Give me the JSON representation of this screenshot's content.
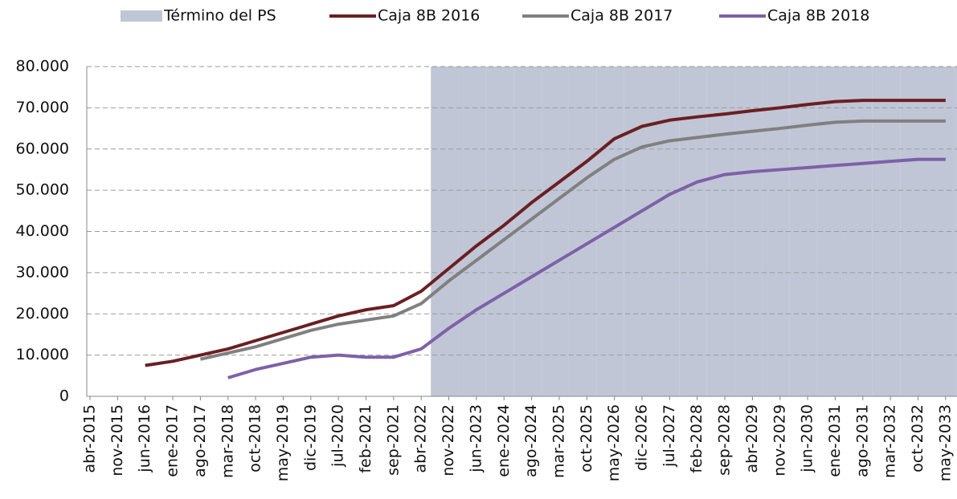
{
  "chart_data": {
    "type": "line",
    "categories": [
      "abr-2015",
      "nov-2015",
      "jun-2016",
      "ene-2017",
      "ago-2017",
      "mar-2018",
      "oct-2018",
      "may-2019",
      "dic-2019",
      "jul-2020",
      "feb-2021",
      "sep-2021",
      "abr-2022",
      "nov-2022",
      "jun-2023",
      "ene-2024",
      "ago-2024",
      "mar-2025",
      "oct-2025",
      "may-2026",
      "dic-2026",
      "jul-2027",
      "feb-2028",
      "sep-2028",
      "abr-2029",
      "nov-2029",
      "jun-2030",
      "ene-2031",
      "ago-2031",
      "mar-2032",
      "oct-2032",
      "may-2033"
    ],
    "shade": {
      "name": "Término del PS",
      "color": "#c0c6d6",
      "values": [
        null,
        null,
        null,
        null,
        null,
        null,
        null,
        null,
        null,
        null,
        null,
        null,
        80000,
        80000,
        80000,
        80000,
        80000,
        80000,
        80000,
        80000,
        80000,
        80000,
        80000,
        80000,
        80000,
        80000,
        80000,
        80000,
        80000,
        80000,
        80000,
        80000
      ]
    },
    "series": [
      {
        "name": "Caja 8B 2016",
        "color": "#6b1f22",
        "values": [
          null,
          null,
          7500,
          8500,
          10000,
          11500,
          13500,
          15500,
          17500,
          19500,
          21000,
          22000,
          25500,
          31000,
          36500,
          41500,
          47000,
          52000,
          57000,
          62500,
          65500,
          67000,
          67800,
          68500,
          69300,
          70000,
          70800,
          71500,
          71800,
          71800,
          71800,
          71800
        ]
      },
      {
        "name": "Caja 8B 2017",
        "color": "#808080",
        "values": [
          null,
          null,
          null,
          null,
          9000,
          10500,
          12000,
          14000,
          16000,
          17500,
          18500,
          19500,
          22500,
          28000,
          33000,
          38000,
          43000,
          48000,
          53000,
          57500,
          60500,
          62000,
          62800,
          63600,
          64300,
          65000,
          65800,
          66500,
          66800,
          66800,
          66800,
          66800
        ]
      },
      {
        "name": "Caja 8B 2018",
        "color": "#7e60a8",
        "values": [
          null,
          null,
          null,
          null,
          null,
          4500,
          6500,
          8000,
          9500,
          10000,
          9500,
          9500,
          11500,
          16500,
          21000,
          25000,
          29000,
          33000,
          37000,
          41000,
          45000,
          49000,
          52000,
          53800,
          54500,
          55000,
          55500,
          56000,
          56500,
          57000,
          57500,
          57500
        ]
      }
    ],
    "ylim": [
      0,
      80000
    ],
    "yticks": [
      0,
      {
        "value": 10000,
        "label": "10.000"
      },
      {
        "value": 20000,
        "label": "20.000"
      },
      {
        "value": 30000,
        "label": "30.000"
      },
      {
        "value": 40000,
        "label": "40.000"
      },
      {
        "value": 50000,
        "label": "50.000"
      },
      {
        "value": 60000,
        "label": "60.000"
      },
      {
        "value": 70000,
        "label": "70.000"
      },
      {
        "value": 80000,
        "label": "80.000"
      }
    ],
    "grid": true
  }
}
